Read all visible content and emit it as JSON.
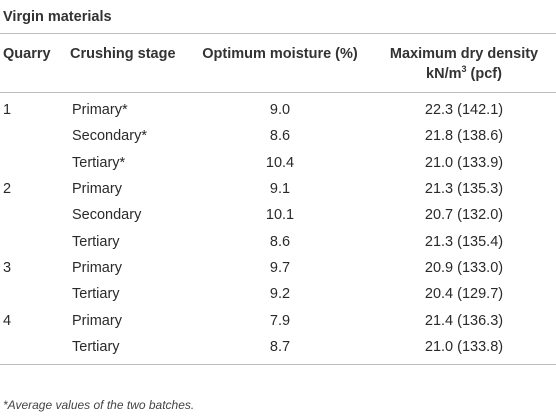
{
  "section_title": "Virgin materials",
  "headers": {
    "quarry": "Quarry",
    "stage": "Crushing stage",
    "moisture": "Optimum moisture (%)",
    "density_line1": "Maximum dry density",
    "density_unit_prefix": "kN/m",
    "density_unit_sup": "3",
    "density_unit_suffix": " (pcf)"
  },
  "rows": [
    {
      "quarry": "1",
      "stage": "Primary*",
      "moisture": "9.0",
      "density": "22.3 (142.1)"
    },
    {
      "quarry": "",
      "stage": "Secondary*",
      "moisture": "8.6",
      "density": "21.8 (138.6)"
    },
    {
      "quarry": "",
      "stage": "Tertiary*",
      "moisture": "10.4",
      "density": "21.0 (133.9)"
    },
    {
      "quarry": "2",
      "stage": "Primary",
      "moisture": "9.1",
      "density": "21.3 (135.3)"
    },
    {
      "quarry": "",
      "stage": "Secondary",
      "moisture": "10.1",
      "density": "20.7 (132.0)"
    },
    {
      "quarry": "",
      "stage": "Tertiary",
      "moisture": "8.6",
      "density": "21.3 (135.4)"
    },
    {
      "quarry": "3",
      "stage": "Primary",
      "moisture": "9.7",
      "density": "20.9 (133.0)"
    },
    {
      "quarry": "",
      "stage": "Tertiary",
      "moisture": "9.2",
      "density": "20.4 (129.7)"
    },
    {
      "quarry": "4",
      "stage": "Primary",
      "moisture": "7.9",
      "density": "21.4 (136.3)"
    },
    {
      "quarry": "",
      "stage": "Tertiary",
      "moisture": "8.7",
      "density": "21.0 (133.8)"
    }
  ],
  "footnote": "*Average values of the two batches."
}
